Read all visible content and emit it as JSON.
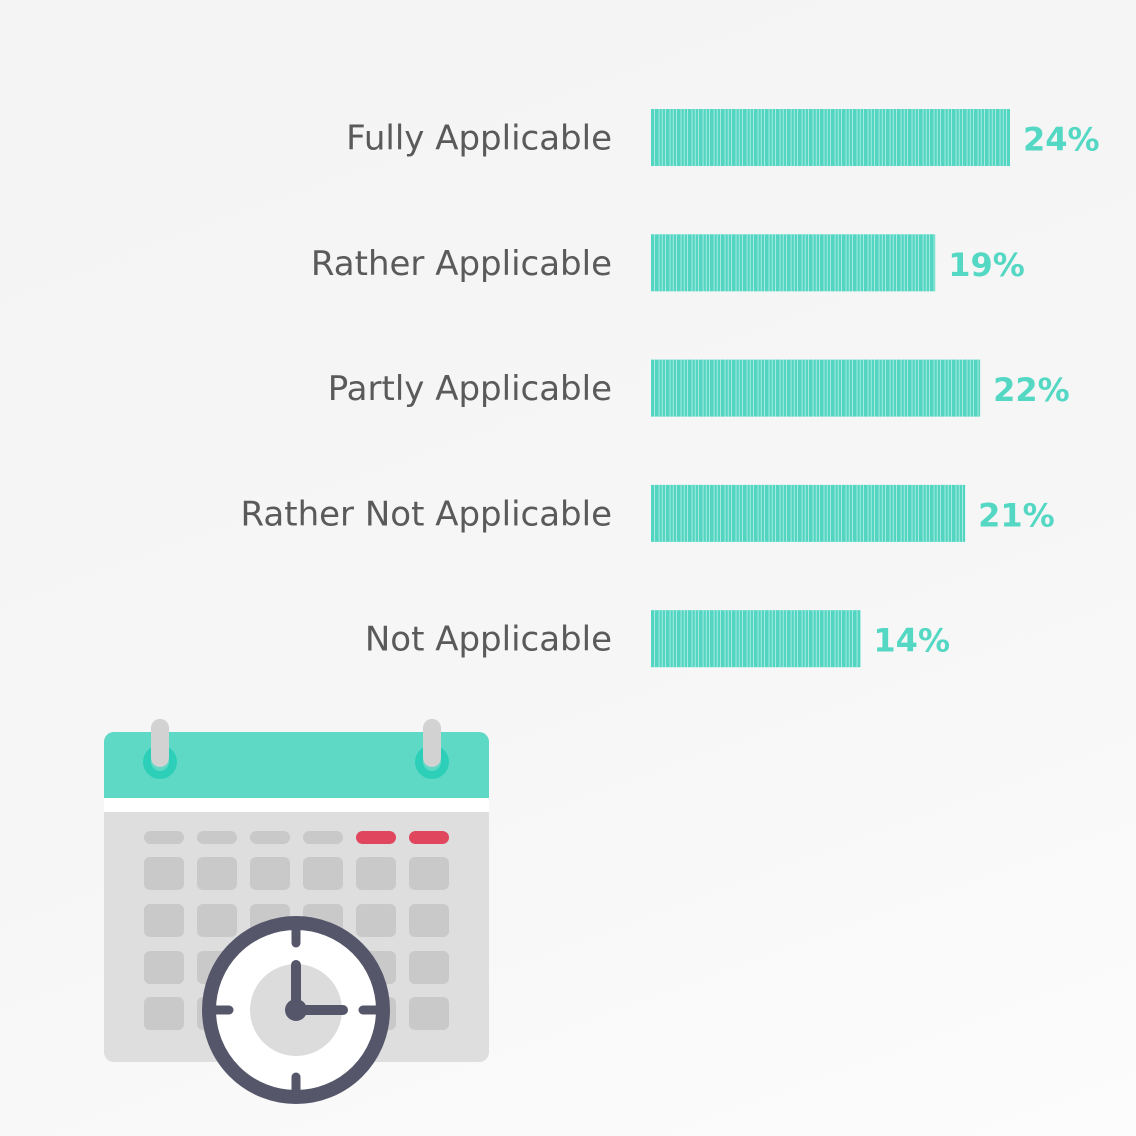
{
  "colors": {
    "bar": "#52d6c2",
    "bar_stripe": "#ffffff",
    "value_text": "#54d8c4",
    "label_text": "#5a5a5a",
    "calendar_header": "#5ed9c6",
    "calendar_ring": "#2ecfb8",
    "calendar_body": "#dedede",
    "calendar_cell": "#c9c9c9",
    "calendar_weekend": "#e0475f",
    "clock_dark": "#55566a"
  },
  "icons": [
    "calendar-icon",
    "clock-icon"
  ],
  "chart_data": {
    "type": "bar",
    "orientation": "horizontal",
    "categories": [
      "Fully Applicable",
      "Rather Applicable",
      "Partly Applicable",
      "Rather Not Applicable",
      "Not Applicable"
    ],
    "values": [
      24,
      19,
      22,
      21,
      14
    ],
    "value_labels": [
      "24%",
      "19%",
      "22%",
      "21%",
      "14%"
    ],
    "unit": "%",
    "xlim": [
      0,
      24
    ],
    "grid": false,
    "legend": "none"
  }
}
